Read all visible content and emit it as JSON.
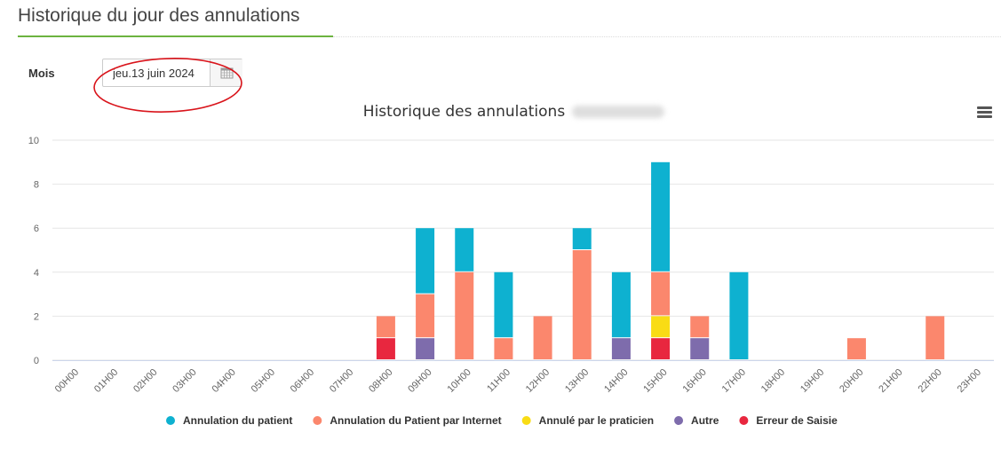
{
  "page": {
    "title": "Historique du jour des annulations"
  },
  "filter": {
    "label": "Mois",
    "date_value": "jeu.13 juin 2024"
  },
  "icons": {
    "calendar": "calendar-icon",
    "menu": "hamburger-menu-icon"
  },
  "colors": {
    "accent_underline": "#6cb33f",
    "annotation_circle": "#d9141b"
  },
  "chart_data": {
    "type": "bar",
    "stacked": true,
    "title": "Historique des annulations",
    "xlabel": "",
    "ylabel": "",
    "ylim": [
      0,
      10
    ],
    "yticks": [
      0,
      2,
      4,
      6,
      8,
      10
    ],
    "grid": true,
    "legend_position": "bottom",
    "categories": [
      "00H00",
      "01H00",
      "02H00",
      "03H00",
      "04H00",
      "05H00",
      "06H00",
      "07H00",
      "08H00",
      "09H00",
      "10H00",
      "11H00",
      "12H00",
      "13H00",
      "14H00",
      "15H00",
      "16H00",
      "17H00",
      "18H00",
      "19H00",
      "20H00",
      "21H00",
      "22H00",
      "23H00"
    ],
    "series": [
      {
        "name": "Erreur de Saisie",
        "color": "#e8273f",
        "values": [
          0,
          0,
          0,
          0,
          0,
          0,
          0,
          0,
          1,
          0,
          0,
          0,
          0,
          0,
          0,
          1,
          0,
          0,
          0,
          0,
          0,
          0,
          0,
          0
        ]
      },
      {
        "name": "Autre",
        "color": "#7e6cac",
        "values": [
          0,
          0,
          0,
          0,
          0,
          0,
          0,
          0,
          0,
          1,
          0,
          0,
          0,
          0,
          1,
          0,
          1,
          0,
          0,
          0,
          0,
          0,
          0,
          0
        ]
      },
      {
        "name": "Annulé par le praticien",
        "color": "#f9dc15",
        "values": [
          0,
          0,
          0,
          0,
          0,
          0,
          0,
          0,
          0,
          0,
          0,
          0,
          0,
          0,
          0,
          1,
          0,
          0,
          0,
          0,
          0,
          0,
          0,
          0
        ]
      },
      {
        "name": "Annulation du Patient par Internet",
        "color": "#fb876d",
        "values": [
          0,
          0,
          0,
          0,
          0,
          0,
          0,
          0,
          1,
          2,
          4,
          1,
          2,
          5,
          0,
          2,
          1,
          0,
          0,
          0,
          1,
          0,
          2,
          0
        ]
      },
      {
        "name": "Annulation du patient",
        "color": "#0eb1d0",
        "values": [
          0,
          0,
          0,
          0,
          0,
          0,
          0,
          0,
          0,
          3,
          2,
          3,
          0,
          1,
          3,
          5,
          0,
          4,
          0,
          0,
          0,
          0,
          0,
          0
        ]
      }
    ],
    "legend_order": [
      "Annulation du patient",
      "Annulation du Patient par Internet",
      "Annulé par le praticien",
      "Autre",
      "Erreur de Saisie"
    ]
  }
}
